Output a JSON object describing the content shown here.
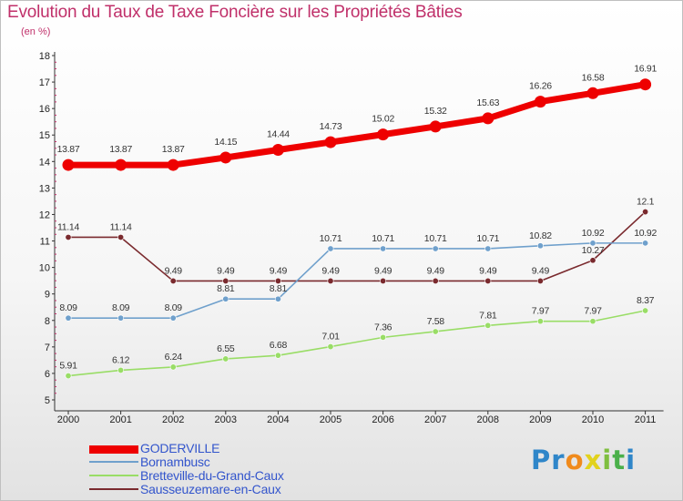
{
  "title": "Evolution du Taux de Taxe Foncière sur les Propriétés Bâties",
  "unit_label": "(en %)",
  "logo": {
    "letters": [
      "P",
      "r",
      "o",
      "x",
      "i",
      "t",
      "i"
    ],
    "colors": [
      "#2f86c9",
      "#2f86c9",
      "#f08a1c",
      "#e2d21d",
      "#7fbf3f",
      "#4bb04b",
      "#2f86c9"
    ]
  },
  "chart_data": {
    "type": "line",
    "title": "Evolution du Taux de Taxe Foncière sur les Propriétés Bâties",
    "xlabel": "",
    "ylabel": "(en %)",
    "x": [
      "2000",
      "2001",
      "2002",
      "2003",
      "2004",
      "2005",
      "2006",
      "2007",
      "2008",
      "2009",
      "2010",
      "2011"
    ],
    "ylim": [
      5,
      18
    ],
    "yticks": [
      "5",
      "6",
      "7",
      "8",
      "9",
      "10",
      "11",
      "12",
      "13",
      "14",
      "15",
      "16",
      "17",
      "18"
    ],
    "grid": false,
    "legend_position": "bottom-left",
    "series": [
      {
        "name": "GODERVILLE",
        "color": "#ee0000",
        "values": [
          13.87,
          13.87,
          13.87,
          14.15,
          14.44,
          14.73,
          15.02,
          15.32,
          15.63,
          16.26,
          16.58,
          16.91
        ],
        "labels": [
          "13.87",
          "13.87",
          "13.87",
          "14.15",
          "14.44",
          "14.73",
          "15.02",
          "15.32",
          "15.63",
          "16.26",
          "16.58",
          "16.91"
        ]
      },
      {
        "name": "Bornambusc",
        "color": "#6fa0cc",
        "values": [
          8.09,
          8.09,
          8.09,
          8.81,
          8.81,
          10.71,
          10.71,
          10.71,
          10.71,
          10.82,
          10.92,
          10.92
        ],
        "labels": [
          "8.09",
          "8.09",
          "8.09",
          "8.81",
          "8.81",
          "10.71",
          "10.71",
          "10.71",
          "10.71",
          "10.82",
          "10.92",
          "10.92"
        ]
      },
      {
        "name": "Bretteville-du-Grand-Caux",
        "color": "#99dd66",
        "values": [
          5.91,
          6.12,
          6.24,
          6.55,
          6.68,
          7.01,
          7.36,
          7.58,
          7.81,
          7.97,
          7.97,
          8.37
        ],
        "labels": [
          "5.91",
          "6.12",
          "6.24",
          "6.55",
          "6.68",
          "7.01",
          "7.36",
          "7.58",
          "7.81",
          "7.97",
          "7.97",
          "8.37"
        ]
      },
      {
        "name": "Sausseuzemare-en-Caux",
        "color": "#7a2a2e",
        "values": [
          11.14,
          11.14,
          9.49,
          9.49,
          9.49,
          9.49,
          9.49,
          9.49,
          9.49,
          9.49,
          10.27,
          12.1
        ],
        "labels": [
          "11.14",
          "11.14",
          "9.49",
          "9.49",
          "9.49",
          "9.49",
          "9.49",
          "9.49",
          "9.49",
          "9.49",
          "10.27",
          "12.1"
        ]
      }
    ]
  }
}
